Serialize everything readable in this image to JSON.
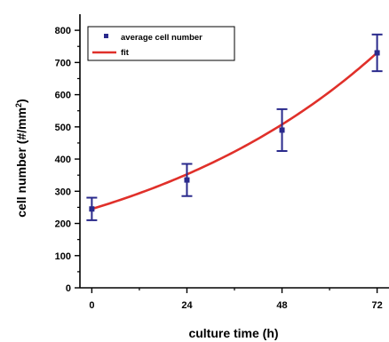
{
  "chart_data": {
    "type": "scatter",
    "xlabel": "culture time (h)",
    "ylabel_main": "cell number (#/mm",
    "ylabel_sup": "2",
    "ylabel_close": ")",
    "x_ticks": [
      0,
      24,
      48,
      72
    ],
    "x_tick_labels": [
      "0",
      "24",
      "48",
      "72"
    ],
    "y_ticks": [
      0,
      100,
      200,
      300,
      400,
      500,
      600,
      700,
      800
    ],
    "y_tick_labels": [
      "0",
      "100",
      "200",
      "300",
      "400",
      "500",
      "600",
      "700",
      "800"
    ],
    "xlim": [
      -3,
      75
    ],
    "ylim": [
      0,
      850
    ],
    "series": [
      {
        "name": "average cell number",
        "kind": "points_with_error",
        "color": "#2a2a8c",
        "x": [
          0,
          24,
          48,
          72
        ],
        "y": [
          245,
          335,
          490,
          730
        ],
        "err": [
          35,
          50,
          65,
          57
        ]
      },
      {
        "name": "fit",
        "kind": "line",
        "color": "#e0302a",
        "model": "exponential",
        "a": 245,
        "b": 0.01517
      }
    ],
    "legend": [
      "average cell number",
      "fit"
    ],
    "legend_position": "top-left",
    "grid": false
  }
}
